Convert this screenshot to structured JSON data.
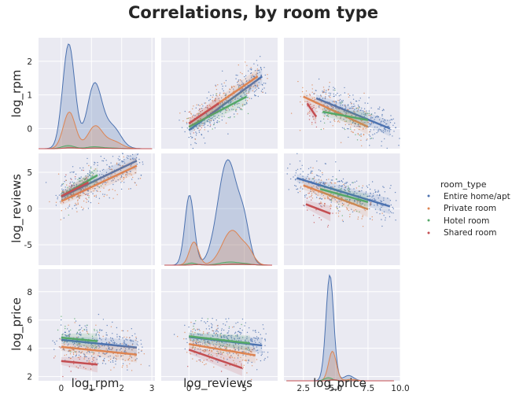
{
  "chart_data": {
    "type": "scatter",
    "title": "Correlations, by room type",
    "variables": [
      "log_rpm",
      "log_reviews",
      "log_price"
    ],
    "grid": true,
    "legend": {
      "title": "room_type",
      "placement": "right",
      "entries": [
        "Entire home/apt",
        "Private room",
        "Hotel room",
        "Shared room"
      ]
    },
    "series_colors": {
      "Entire home/apt": "#4c72b0",
      "Private room": "#dd8452",
      "Hotel room": "#55a868",
      "Shared room": "#c44e52"
    },
    "axes": {
      "log_rpm": {
        "range": [
          -0.75,
          3.1
        ],
        "ticks": [
          "0",
          "1",
          "2",
          "3"
        ],
        "diag_ticks": [
          "0",
          "1",
          "2"
        ],
        "tick_values": [
          0,
          1,
          2,
          3
        ],
        "diag_tick_values": [
          0,
          1,
          2
        ]
      },
      "log_reviews": {
        "range": [
          -7.8,
          7.6
        ],
        "ticks": [
          "0",
          "5"
        ],
        "y_ticks": [
          "-5",
          "0",
          "5"
        ],
        "tick_values": [
          0,
          5
        ],
        "y_tick_values": [
          -5,
          0,
          5
        ]
      },
      "log_price": {
        "range": [
          1.5,
          9.7
        ],
        "ticks": [
          "2",
          "4",
          "6",
          "8"
        ],
        "x_ticks": [
          "2.5",
          "5.0",
          "7.5",
          "10.0"
        ],
        "tick_values": [
          2,
          4,
          6,
          8
        ],
        "x_tick_values": [
          2.5,
          5.0,
          7.5,
          10.0
        ],
        "x_range": [
          1.0,
          10.0
        ]
      }
    },
    "regression_lines": {
      "log_rpm_vs_log_reviews": [
        {
          "series": "Entire home/apt",
          "x": [
            0,
            6.6
          ],
          "y": [
            -0.05,
            1.55
          ]
        },
        {
          "series": "Private room",
          "x": [
            0,
            6.2
          ],
          "y": [
            0.15,
            1.55
          ]
        },
        {
          "series": "Hotel room",
          "x": [
            0,
            5.2
          ],
          "y": [
            0.05,
            0.95
          ]
        },
        {
          "series": "Shared room",
          "x": [
            0,
            2.7
          ],
          "y": [
            0.15,
            0.75
          ]
        }
      ],
      "log_rpm_vs_log_price": [
        {
          "series": "Entire home/apt",
          "x": [
            3.5,
            9.2
          ],
          "y": [
            0.9,
            0.0
          ]
        },
        {
          "series": "Private room",
          "x": [
            2.5,
            7.5
          ],
          "y": [
            0.95,
            0.05
          ]
        },
        {
          "series": "Hotel room",
          "x": [
            4.0,
            7.5
          ],
          "y": [
            0.5,
            0.25
          ]
        },
        {
          "series": "Shared room",
          "x": [
            2.8,
            3.5
          ],
          "y": [
            0.75,
            0.35
          ]
        }
      ],
      "log_reviews_vs_log_rpm": [
        {
          "series": "Entire home/apt",
          "x": [
            0,
            2.5
          ],
          "y": [
            1.6,
            6.6
          ]
        },
        {
          "series": "Private room",
          "x": [
            0,
            2.5
          ],
          "y": [
            1.0,
            5.9
          ]
        },
        {
          "series": "Hotel room",
          "x": [
            0,
            1.2
          ],
          "y": [
            1.7,
            4.6
          ]
        },
        {
          "series": "Shared room",
          "x": [
            0,
            0.9
          ],
          "y": [
            1.7,
            3.6
          ]
        }
      ],
      "log_reviews_vs_log_price": [
        {
          "series": "Entire home/apt",
          "x": [
            2.0,
            9.2
          ],
          "y": [
            4.2,
            0.3
          ]
        },
        {
          "series": "Private room",
          "x": [
            2.5,
            7.5
          ],
          "y": [
            3.2,
            -0.1
          ]
        },
        {
          "series": "Hotel room",
          "x": [
            3.8,
            7.5
          ],
          "y": [
            2.7,
            0.9
          ]
        },
        {
          "series": "Shared room",
          "x": [
            2.7,
            4.6
          ],
          "y": [
            0.6,
            -0.7
          ]
        }
      ],
      "log_price_vs_log_rpm": [
        {
          "series": "Entire home/apt",
          "x": [
            0,
            2.5
          ],
          "y": [
            4.6,
            4.05
          ]
        },
        {
          "series": "Private room",
          "x": [
            0,
            2.5
          ],
          "y": [
            4.1,
            3.55
          ]
        },
        {
          "series": "Hotel room",
          "x": [
            0,
            1.2
          ],
          "y": [
            4.75,
            4.5
          ]
        },
        {
          "series": "Shared room",
          "x": [
            0,
            1.2
          ],
          "y": [
            3.1,
            2.85
          ]
        }
      ],
      "log_price_vs_log_reviews": [
        {
          "series": "Entire home/apt",
          "x": [
            0,
            6.6
          ],
          "y": [
            4.8,
            4.2
          ]
        },
        {
          "series": "Private room",
          "x": [
            0,
            6.0
          ],
          "y": [
            4.3,
            3.5
          ]
        },
        {
          "series": "Hotel room",
          "x": [
            0,
            5.5
          ],
          "y": [
            4.85,
            4.35
          ]
        },
        {
          "series": "Shared room",
          "x": [
            0,
            4.8
          ],
          "y": [
            3.9,
            2.6
          ]
        }
      ]
    },
    "kde_diagonal": {
      "log_rpm": [
        {
          "series": "Entire home/apt",
          "peak_x": 0.25,
          "peak_height": 1.0
        },
        {
          "series": "Private room",
          "peak_x": 0.2,
          "peak_height": 0.35
        },
        {
          "series": "Hotel room",
          "peak_x": 0.3,
          "peak_height": 0.03
        },
        {
          "series": "Shared room",
          "peak_x": 0.1,
          "peak_height": 0.01
        }
      ],
      "log_reviews": [
        {
          "series": "Entire home/apt",
          "peak_x": 3.5,
          "peak_height": 1.0
        },
        {
          "series": "Private room",
          "peak_x": 2.5,
          "peak_height": 0.33
        },
        {
          "series": "Hotel room",
          "peak_x": 3.0,
          "peak_height": 0.03
        },
        {
          "series": "Shared room",
          "peak_x": 1.5,
          "peak_height": 0.01
        }
      ],
      "log_price": [
        {
          "series": "Entire home/apt",
          "peak_x": 4.5,
          "peak_height": 1.0
        },
        {
          "series": "Private room",
          "peak_x": 4.0,
          "peak_height": 0.28
        },
        {
          "series": "Hotel room",
          "peak_x": 4.8,
          "peak_height": 0.03
        },
        {
          "series": "Shared room",
          "peak_x": 3.8,
          "peak_height": 0.01
        }
      ]
    }
  }
}
